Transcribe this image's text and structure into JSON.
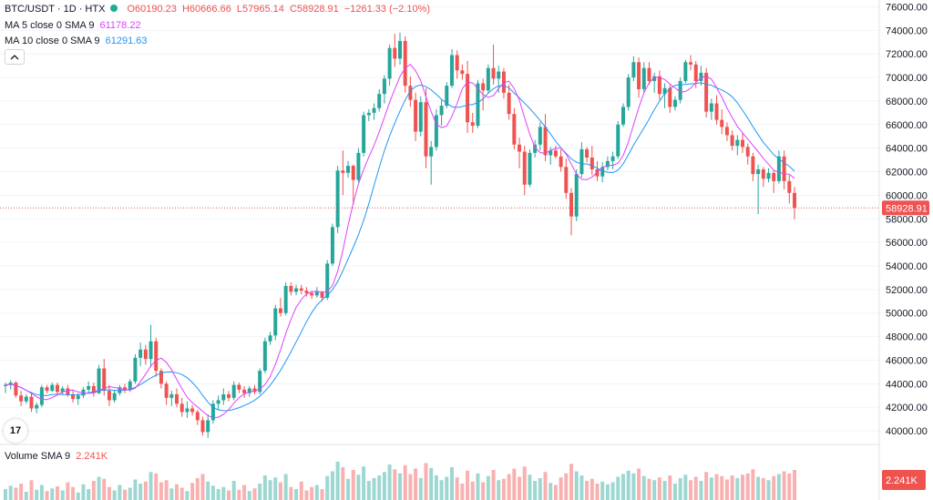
{
  "header": {
    "symbol": "BTC/USDT · 1D · HTX",
    "open": "O60190.23",
    "high": "H60666.66",
    "low": "L57965.14",
    "close": "C58928.91",
    "change": "−1261.33 (−2.10%)"
  },
  "indicators": {
    "ma5": {
      "label": "MA 5 close 0 SMA 9",
      "value": "61178.22"
    },
    "ma10": {
      "label": "MA 10 close 0 SMA 9",
      "value": "61291.63"
    },
    "volume": {
      "label": "Volume SMA 9",
      "value": "2.241K"
    }
  },
  "price_axis": {
    "ticks": [
      "76000.00",
      "74000.00",
      "72000.00",
      "70000.00",
      "68000.00",
      "66000.00",
      "64000.00",
      "62000.00",
      "60000.00",
      "58000.00",
      "56000.00",
      "54000.00",
      "52000.00",
      "50000.00",
      "48000.00",
      "46000.00",
      "44000.00",
      "42000.00",
      "40000.00"
    ],
    "last_price_label": "58928.91",
    "last_price": 58928.91,
    "volume_label": "2.241K"
  },
  "logo": "17",
  "colors": {
    "up": "#26a69a",
    "down": "#ef5350",
    "ma5": "#e040fb",
    "ma10": "#2196f3",
    "price_line": "#ef5350",
    "grid": "#f0f3fa"
  },
  "chart_data": {
    "type": "candlestick",
    "title": "BTC/USDT · 1D · HTX",
    "ylim": [
      39000,
      76500
    ],
    "candles": [
      [
        43800,
        44100,
        43200,
        43900
      ],
      [
        43900,
        44300,
        43500,
        44100
      ],
      [
        44100,
        44200,
        42800,
        43000
      ],
      [
        43000,
        43400,
        42100,
        42500
      ],
      [
        42500,
        43100,
        42300,
        42900
      ],
      [
        42900,
        43300,
        41600,
        41900
      ],
      [
        41900,
        42400,
        41500,
        42200
      ],
      [
        42200,
        43900,
        42000,
        43700
      ],
      [
        43700,
        43900,
        43200,
        43400
      ],
      [
        43400,
        44100,
        43300,
        43900
      ],
      [
        43900,
        44100,
        43100,
        43300
      ],
      [
        43300,
        43800,
        43100,
        43600
      ],
      [
        43600,
        43900,
        42900,
        43100
      ],
      [
        43100,
        43500,
        42400,
        42700
      ],
      [
        42700,
        43200,
        42200,
        43000
      ],
      [
        43000,
        43700,
        42800,
        43500
      ],
      [
        43500,
        44200,
        43200,
        43800
      ],
      [
        43800,
        44100,
        42900,
        43200
      ],
      [
        43200,
        45600,
        43100,
        45300
      ],
      [
        45300,
        46100,
        43000,
        43400
      ],
      [
        43400,
        43900,
        42100,
        42600
      ],
      [
        42600,
        43500,
        42400,
        43200
      ],
      [
        43200,
        43900,
        43000,
        43700
      ],
      [
        43700,
        44000,
        43200,
        43500
      ],
      [
        43500,
        44400,
        43300,
        44200
      ],
      [
        44200,
        46500,
        44000,
        46200
      ],
      [
        46200,
        47500,
        45500,
        46900
      ],
      [
        46900,
        47300,
        45600,
        46100
      ],
      [
        46100,
        49000,
        45400,
        47600
      ],
      [
        47600,
        47900,
        44600,
        45100
      ],
      [
        45100,
        45300,
        43600,
        44000
      ],
      [
        44000,
        44200,
        42200,
        42800
      ],
      [
        42800,
        43400,
        42100,
        43100
      ],
      [
        43100,
        43600,
        42000,
        42300
      ],
      [
        42300,
        42800,
        41200,
        41600
      ],
      [
        41600,
        42500,
        41100,
        41900
      ],
      [
        41900,
        42200,
        41300,
        41600
      ],
      [
        41600,
        41800,
        40500,
        40900
      ],
      [
        40900,
        41200,
        39600,
        39900
      ],
      [
        39900,
        41400,
        39400,
        40900
      ],
      [
        40900,
        42600,
        40600,
        42300
      ],
      [
        42300,
        43000,
        41800,
        42600
      ],
      [
        42600,
        43600,
        42200,
        43100
      ],
      [
        43100,
        43400,
        42500,
        42800
      ],
      [
        42800,
        44200,
        42600,
        43900
      ],
      [
        43900,
        44100,
        43200,
        43500
      ],
      [
        43500,
        43800,
        42800,
        43200
      ],
      [
        43200,
        43800,
        42900,
        43600
      ],
      [
        43600,
        43900,
        43100,
        43300
      ],
      [
        43300,
        45300,
        43100,
        45100
      ],
      [
        45100,
        47900,
        44900,
        47600
      ],
      [
        47600,
        48400,
        47300,
        48100
      ],
      [
        48100,
        50700,
        47700,
        50400
      ],
      [
        50400,
        51300,
        49700,
        50000
      ],
      [
        50000,
        52600,
        49800,
        52300
      ],
      [
        52300,
        52600,
        51500,
        51800
      ],
      [
        51800,
        52400,
        51500,
        52100
      ],
      [
        52100,
        52400,
        51600,
        51900
      ],
      [
        51900,
        52200,
        51400,
        51700
      ],
      [
        51700,
        51900,
        51200,
        51500
      ],
      [
        51500,
        52200,
        51300,
        51800
      ],
      [
        51800,
        51900,
        51000,
        51300
      ],
      [
        51300,
        54500,
        51100,
        54200
      ],
      [
        54200,
        57600,
        54000,
        57300
      ],
      [
        57300,
        62500,
        56800,
        62100
      ],
      [
        62100,
        63800,
        60000,
        61900
      ],
      [
        61900,
        62900,
        61500,
        62500
      ],
      [
        62500,
        62600,
        59200,
        61300
      ],
      [
        61300,
        64000,
        61100,
        63600
      ],
      [
        63600,
        67100,
        63300,
        66800
      ],
      [
        66800,
        67300,
        66300,
        67000
      ],
      [
        67000,
        67800,
        66400,
        67400
      ],
      [
        67400,
        69000,
        67100,
        68600
      ],
      [
        68600,
        70200,
        67800,
        69900
      ],
      [
        69900,
        72800,
        69300,
        72500
      ],
      [
        72500,
        73700,
        70900,
        71600
      ],
      [
        71600,
        73800,
        71100,
        73100
      ],
      [
        73100,
        73500,
        68700,
        69300
      ],
      [
        69300,
        70100,
        67500,
        68100
      ],
      [
        68100,
        68700,
        64600,
        65400
      ],
      [
        65400,
        68400,
        65000,
        67900
      ],
      [
        67900,
        69100,
        62300,
        63300
      ],
      [
        63300,
        64600,
        60900,
        64100
      ],
      [
        64100,
        67300,
        63800,
        66800
      ],
      [
        66800,
        68100,
        65900,
        67600
      ],
      [
        67600,
        69600,
        67400,
        69300
      ],
      [
        69300,
        72400,
        69100,
        71900
      ],
      [
        71900,
        72300,
        69900,
        70600
      ],
      [
        70600,
        71100,
        69800,
        70300
      ],
      [
        70300,
        71400,
        65300,
        66200
      ],
      [
        66200,
        67000,
        65300,
        65900
      ],
      [
        65900,
        69800,
        65700,
        69500
      ],
      [
        69500,
        69900,
        67200,
        68900
      ],
      [
        68900,
        71100,
        68700,
        70800
      ],
      [
        70800,
        72800,
        69400,
        69900
      ],
      [
        69900,
        71000,
        68700,
        70500
      ],
      [
        70500,
        70800,
        68200,
        68700
      ],
      [
        68700,
        69400,
        66400,
        66900
      ],
      [
        66900,
        67400,
        63900,
        64300
      ],
      [
        64300,
        64900,
        62300,
        63700
      ],
      [
        63700,
        64200,
        60000,
        60900
      ],
      [
        60900,
        63900,
        60700,
        63600
      ],
      [
        63600,
        64700,
        63200,
        64300
      ],
      [
        64300,
        66200,
        63800,
        65800
      ],
      [
        65800,
        66900,
        62900,
        63400
      ],
      [
        63400,
        64100,
        62600,
        63800
      ],
      [
        63800,
        64200,
        63100,
        63300
      ],
      [
        63300,
        63900,
        62000,
        62400
      ],
      [
        62400,
        63100,
        59700,
        60200
      ],
      [
        60200,
        60600,
        56600,
        58200
      ],
      [
        58200,
        62200,
        57800,
        61800
      ],
      [
        61800,
        64500,
        61500,
        63900
      ],
      [
        63900,
        64100,
        62800,
        63200
      ],
      [
        63200,
        64200,
        61700,
        62200
      ],
      [
        62200,
        62900,
        61200,
        61600
      ],
      [
        61600,
        62800,
        61100,
        62400
      ],
      [
        62400,
        63300,
        62100,
        62900
      ],
      [
        62900,
        63700,
        62200,
        63300
      ],
      [
        63300,
        66300,
        63100,
        66000
      ],
      [
        66000,
        67800,
        65800,
        67500
      ],
      [
        67500,
        70300,
        67200,
        70000
      ],
      [
        70000,
        71800,
        69700,
        71300
      ],
      [
        71300,
        71700,
        68300,
        69000
      ],
      [
        69000,
        71300,
        68700,
        70800
      ],
      [
        70800,
        71300,
        69400,
        69700
      ],
      [
        69700,
        70400,
        68700,
        70100
      ],
      [
        70100,
        70600,
        68100,
        68600
      ],
      [
        68600,
        69500,
        67400,
        69100
      ],
      [
        69100,
        69400,
        67000,
        67500
      ],
      [
        67500,
        68400,
        67200,
        68100
      ],
      [
        68100,
        70000,
        67800,
        69700
      ],
      [
        69700,
        71500,
        69500,
        71300
      ],
      [
        71300,
        71900,
        70600,
        71100
      ],
      [
        71100,
        71400,
        69100,
        69700
      ],
      [
        69700,
        71000,
        69300,
        70400
      ],
      [
        70400,
        70800,
        66600,
        67100
      ],
      [
        67100,
        68200,
        66400,
        67800
      ],
      [
        67800,
        68500,
        66000,
        66400
      ],
      [
        66400,
        67300,
        65200,
        65800
      ],
      [
        65800,
        66200,
        64600,
        65100
      ],
      [
        65100,
        65500,
        63800,
        64200
      ],
      [
        64200,
        65100,
        63400,
        64700
      ],
      [
        64700,
        65300,
        63600,
        64100
      ],
      [
        64100,
        64400,
        62600,
        63300
      ],
      [
        63300,
        63600,
        61200,
        61800
      ],
      [
        61800,
        62600,
        58400,
        62200
      ],
      [
        62200,
        62400,
        60700,
        61400
      ],
      [
        61400,
        62300,
        61100,
        61900
      ],
      [
        61900,
        62100,
        60200,
        61200
      ],
      [
        61200,
        63800,
        61000,
        63300
      ],
      [
        63300,
        63800,
        60500,
        61200
      ],
      [
        61200,
        61700,
        59300,
        60200
      ],
      [
        60200,
        60700,
        57965,
        58929
      ]
    ],
    "volume": [
      1.6,
      2.1,
      1.8,
      2.4,
      1.2,
      2.9,
      1.5,
      2.2,
      1.3,
      1.7,
      2.0,
      1.4,
      2.6,
      1.9,
      1.1,
      2.3,
      1.6,
      2.8,
      3.4,
      3.1,
      1.9,
      1.4,
      2.2,
      1.5,
      1.8,
      3.0,
      2.4,
      2.7,
      4.1,
      3.9,
      2.6,
      2.9,
      1.7,
      2.3,
      1.8,
      1.3,
      2.5,
      3.2,
      3.8,
      2.7,
      2.1,
      1.6,
      1.9,
      1.4,
      2.8,
      1.5,
      2.2,
      1.3,
      1.7,
      2.4,
      3.6,
      2.9,
      3.3,
      2.6,
      3.8,
      1.9,
      1.6,
      2.7,
      1.4,
      1.9,
      2.2,
      1.6,
      3.5,
      4.2,
      5.6,
      4.8,
      3.1,
      4.4,
      3.7,
      4.9,
      2.8,
      3.2,
      3.6,
      4.1,
      5.2,
      4.5,
      3.9,
      5.1,
      3.8,
      4.6,
      3.2,
      5.4,
      4.7,
      3.6,
      2.9,
      3.4,
      4.8,
      3.3,
      2.4,
      4.3,
      2.7,
      3.9,
      2.6,
      3.5,
      4.4,
      2.9,
      3.1,
      3.8,
      4.6,
      3.4,
      4.9,
      3.7,
      2.8,
      3.2,
      4.1,
      2.5,
      2.2,
      3.3,
      3.9,
      5.3,
      4.2,
      3.6,
      2.8,
      3.1,
      2.4,
      2.7,
      2.3,
      2.6,
      3.4,
      3.8,
      4.3,
      3.9,
      4.6,
      3.5,
      3.1,
      2.9,
      3.3,
      2.8,
      3.6,
      2.4,
      3.2,
      3.7,
      2.9,
      3.4,
      2.8,
      4.1,
      3.3,
      3.8,
      3.5,
      3.0,
      3.6,
      3.2,
      3.7,
      3.9,
      4.5,
      3.4,
      3.2,
      2.9,
      3.5,
      3.8,
      4.2,
      3.9,
      4.4
    ]
  }
}
